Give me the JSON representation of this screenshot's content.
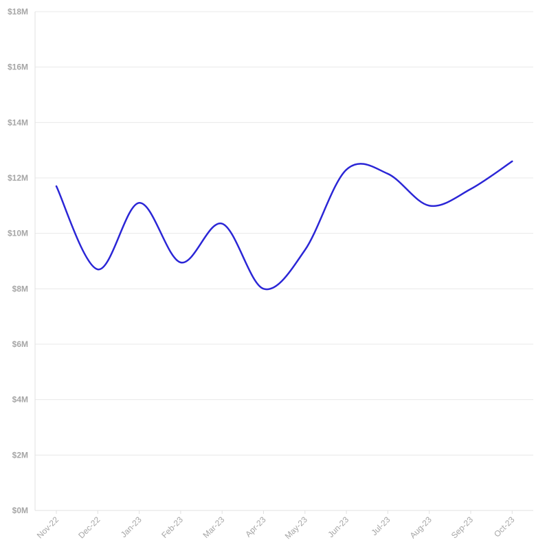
{
  "chart_data": {
    "type": "line",
    "title": "",
    "xlabel": "",
    "ylabel": "",
    "categories": [
      "Nov-22",
      "Dec-22",
      "Jan-23",
      "Feb-23",
      "Mar-23",
      "Apr-23",
      "May-23",
      "Jun-23",
      "Jul-23",
      "Aug-23",
      "Sep-23",
      "Oct-23"
    ],
    "series": [
      {
        "values": [
          11.7,
          8.7,
          11.1,
          8.95,
          10.35,
          8.0,
          9.4,
          12.3,
          12.15,
          11.0,
          11.6,
          12.6
        ]
      }
    ],
    "ylim": [
      0,
      18
    ],
    "yticks": [
      0,
      2,
      4,
      6,
      8,
      10,
      12,
      14,
      16,
      18
    ],
    "ytick_labels": [
      "$0M",
      "$2M",
      "$4M",
      "$6M",
      "$8M",
      "$10M",
      "$12M",
      "$14M",
      "$16M",
      "$18M"
    ],
    "grid": true,
    "legend": "none",
    "line_color": "#2b26d6"
  }
}
